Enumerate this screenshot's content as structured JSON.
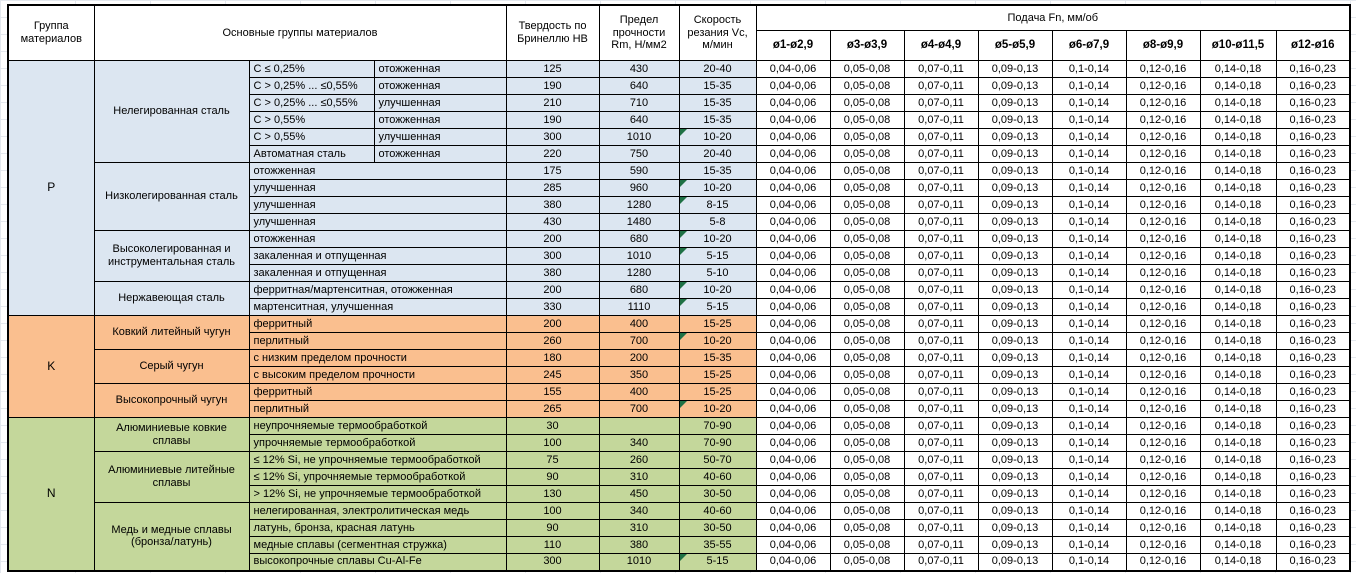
{
  "table": {
    "headers": {
      "group": "Группа материалов",
      "material_groups": "Основные группы материалов",
      "hardness": "Твердость по Бринеллю HB",
      "strength": "Предел прочности Rm, Н/мм2",
      "cutting_speed": "Скорость резания Vc, м/мин",
      "feed": "Подача Fn, мм/об",
      "feed_columns": [
        "ø1-ø2,9",
        "ø3-ø3,9",
        "ø4-ø4,9",
        "ø5-ø5,9",
        "ø6-ø7,9",
        "ø8-ø9,9",
        "ø10-ø11,5",
        "ø12-ø16"
      ]
    },
    "feed_values": [
      "0,04-0,06",
      "0,05-0,08",
      "0,07-0,11",
      "0,09-0,13",
      "0,1-0,14",
      "0,12-0,16",
      "0,14-0,18",
      "0,16-0,23"
    ],
    "colors": {
      "p_blue": "#dce6f1",
      "k_orange": "#fabf8f",
      "n_green": "#c4d79b",
      "flag_green": "#1f7145"
    },
    "groups": [
      {
        "letter": "P",
        "color": "#dce6f1",
        "subgroups": [
          {
            "name": "Нелегированная сталь",
            "rows": [
              {
                "spec": "C ≤ 0,25%",
                "state": "отожженная",
                "hb": "125",
                "rm": "430",
                "vc": "20-40",
                "flag": false
              },
              {
                "spec": "C > 0,25% ... ≤0,55%",
                "state": "отожженная",
                "hb": "190",
                "rm": "640",
                "vc": "15-35",
                "flag": false
              },
              {
                "spec": "C > 0,25% ... ≤0,55%",
                "state": "улучшенная",
                "hb": "210",
                "rm": "710",
                "vc": "15-35",
                "flag": false
              },
              {
                "spec": "C > 0,55%",
                "state": "отожженная",
                "hb": "190",
                "rm": "640",
                "vc": "15-35",
                "flag": false
              },
              {
                "spec": "C > 0,55%",
                "state": "улучшенная",
                "hb": "300",
                "rm": "1010",
                "vc": "10-20",
                "flag": true
              },
              {
                "spec": "Автоматная сталь",
                "state": "отожженная",
                "hb": "220",
                "rm": "750",
                "vc": "20-40",
                "flag": false
              }
            ]
          },
          {
            "name": "Низколегированная сталь",
            "rows": [
              {
                "desc": "отожженная",
                "hb": "175",
                "rm": "590",
                "vc": "15-35",
                "flag": false
              },
              {
                "desc": "улучшенная",
                "hb": "285",
                "rm": "960",
                "vc": "10-20",
                "flag": true
              },
              {
                "desc": "улучшенная",
                "hb": "380",
                "rm": "1280",
                "vc": "8-15",
                "flag": true
              },
              {
                "desc": "улучшенная",
                "hb": "430",
                "rm": "1480",
                "vc": "5-8",
                "flag": false
              }
            ]
          },
          {
            "name": "Высоколегированная и инструментальная сталь",
            "rows": [
              {
                "desc": "отожженная",
                "hb": "200",
                "rm": "680",
                "vc": "10-20",
                "flag": true
              },
              {
                "desc": "закаленная и отпущенная",
                "hb": "300",
                "rm": "1010",
                "vc": "5-15",
                "flag": true
              },
              {
                "desc": "закаленная и отпущенная",
                "hb": "380",
                "rm": "1280",
                "vc": "5-10",
                "flag": false
              }
            ]
          },
          {
            "name": "Нержавеющая сталь",
            "rows": [
              {
                "desc": "ферритная/мартенситная, отожженная",
                "hb": "200",
                "rm": "680",
                "vc": "10-20",
                "flag": true
              },
              {
                "desc": "мартенситная, улучшенная",
                "hb": "330",
                "rm": "1110",
                "vc": "5-15",
                "flag": true
              }
            ]
          }
        ]
      },
      {
        "letter": "K",
        "color": "#fabf8f",
        "subgroups": [
          {
            "name": "Ковкий литейный чугун",
            "rows": [
              {
                "desc": "ферритный",
                "hb": "200",
                "rm": "400",
                "vc": "15-25",
                "flag": false
              },
              {
                "desc": "перлитный",
                "hb": "260",
                "rm": "700",
                "vc": "10-20",
                "flag": true
              }
            ]
          },
          {
            "name": "Серый чугун",
            "rows": [
              {
                "desc": "с низким пределом прочности",
                "hb": "180",
                "rm": "200",
                "vc": "15-35",
                "flag": false
              },
              {
                "desc": "с высоким пределом прочности",
                "hb": "245",
                "rm": "350",
                "vc": "15-25",
                "flag": false
              }
            ]
          },
          {
            "name": "Высокопрочный чугун",
            "rows": [
              {
                "desc": "ферритный",
                "hb": "155",
                "rm": "400",
                "vc": "15-25",
                "flag": false
              },
              {
                "desc": "перлитный",
                "hb": "265",
                "rm": "700",
                "vc": "10-20",
                "flag": true
              }
            ]
          }
        ]
      },
      {
        "letter": "N",
        "color": "#c4d79b",
        "subgroups": [
          {
            "name": "Алюминиевые ковкие сплавы",
            "rows": [
              {
                "desc": "неупрочняемые термообработкой",
                "hb": "30",
                "rm": "",
                "vc": "70-90",
                "flag": false
              },
              {
                "desc": "упрочняемые термообработкой",
                "hb": "100",
                "rm": "340",
                "vc": "70-90",
                "flag": false
              }
            ]
          },
          {
            "name": "Алюминиевые литейные сплавы",
            "rows": [
              {
                "desc": "≤ 12% Si, не упрочняемые термообработкой",
                "hb": "75",
                "rm": "260",
                "vc": "50-70",
                "flag": false
              },
              {
                "desc": "≤ 12% Si, упрочняемые термообработкой",
                "hb": "90",
                "rm": "310",
                "vc": "40-60",
                "flag": false
              },
              {
                "desc": "> 12% Si, не упрочняемые термообработкой",
                "hb": "130",
                "rm": "450",
                "vc": "30-50",
                "flag": false
              }
            ]
          },
          {
            "name": "Медь и медные сплавы (бронза/латунь)",
            "rows": [
              {
                "desc": "нелегированная, электролитическая медь",
                "hb": "100",
                "rm": "340",
                "vc": "40-60",
                "flag": false
              },
              {
                "desc": "латунь, бронза, красная латунь",
                "hb": "90",
                "rm": "310",
                "vc": "30-50",
                "flag": false
              },
              {
                "desc": "медные сплавы (сегментная стружка)",
                "hb": "110",
                "rm": "380",
                "vc": "35-55",
                "flag": false
              },
              {
                "desc": "высокопрочные сплавы Cu-Al-Fe",
                "hb": "300",
                "rm": "1010",
                "vc": "5-15",
                "flag": true
              }
            ]
          }
        ]
      }
    ]
  }
}
